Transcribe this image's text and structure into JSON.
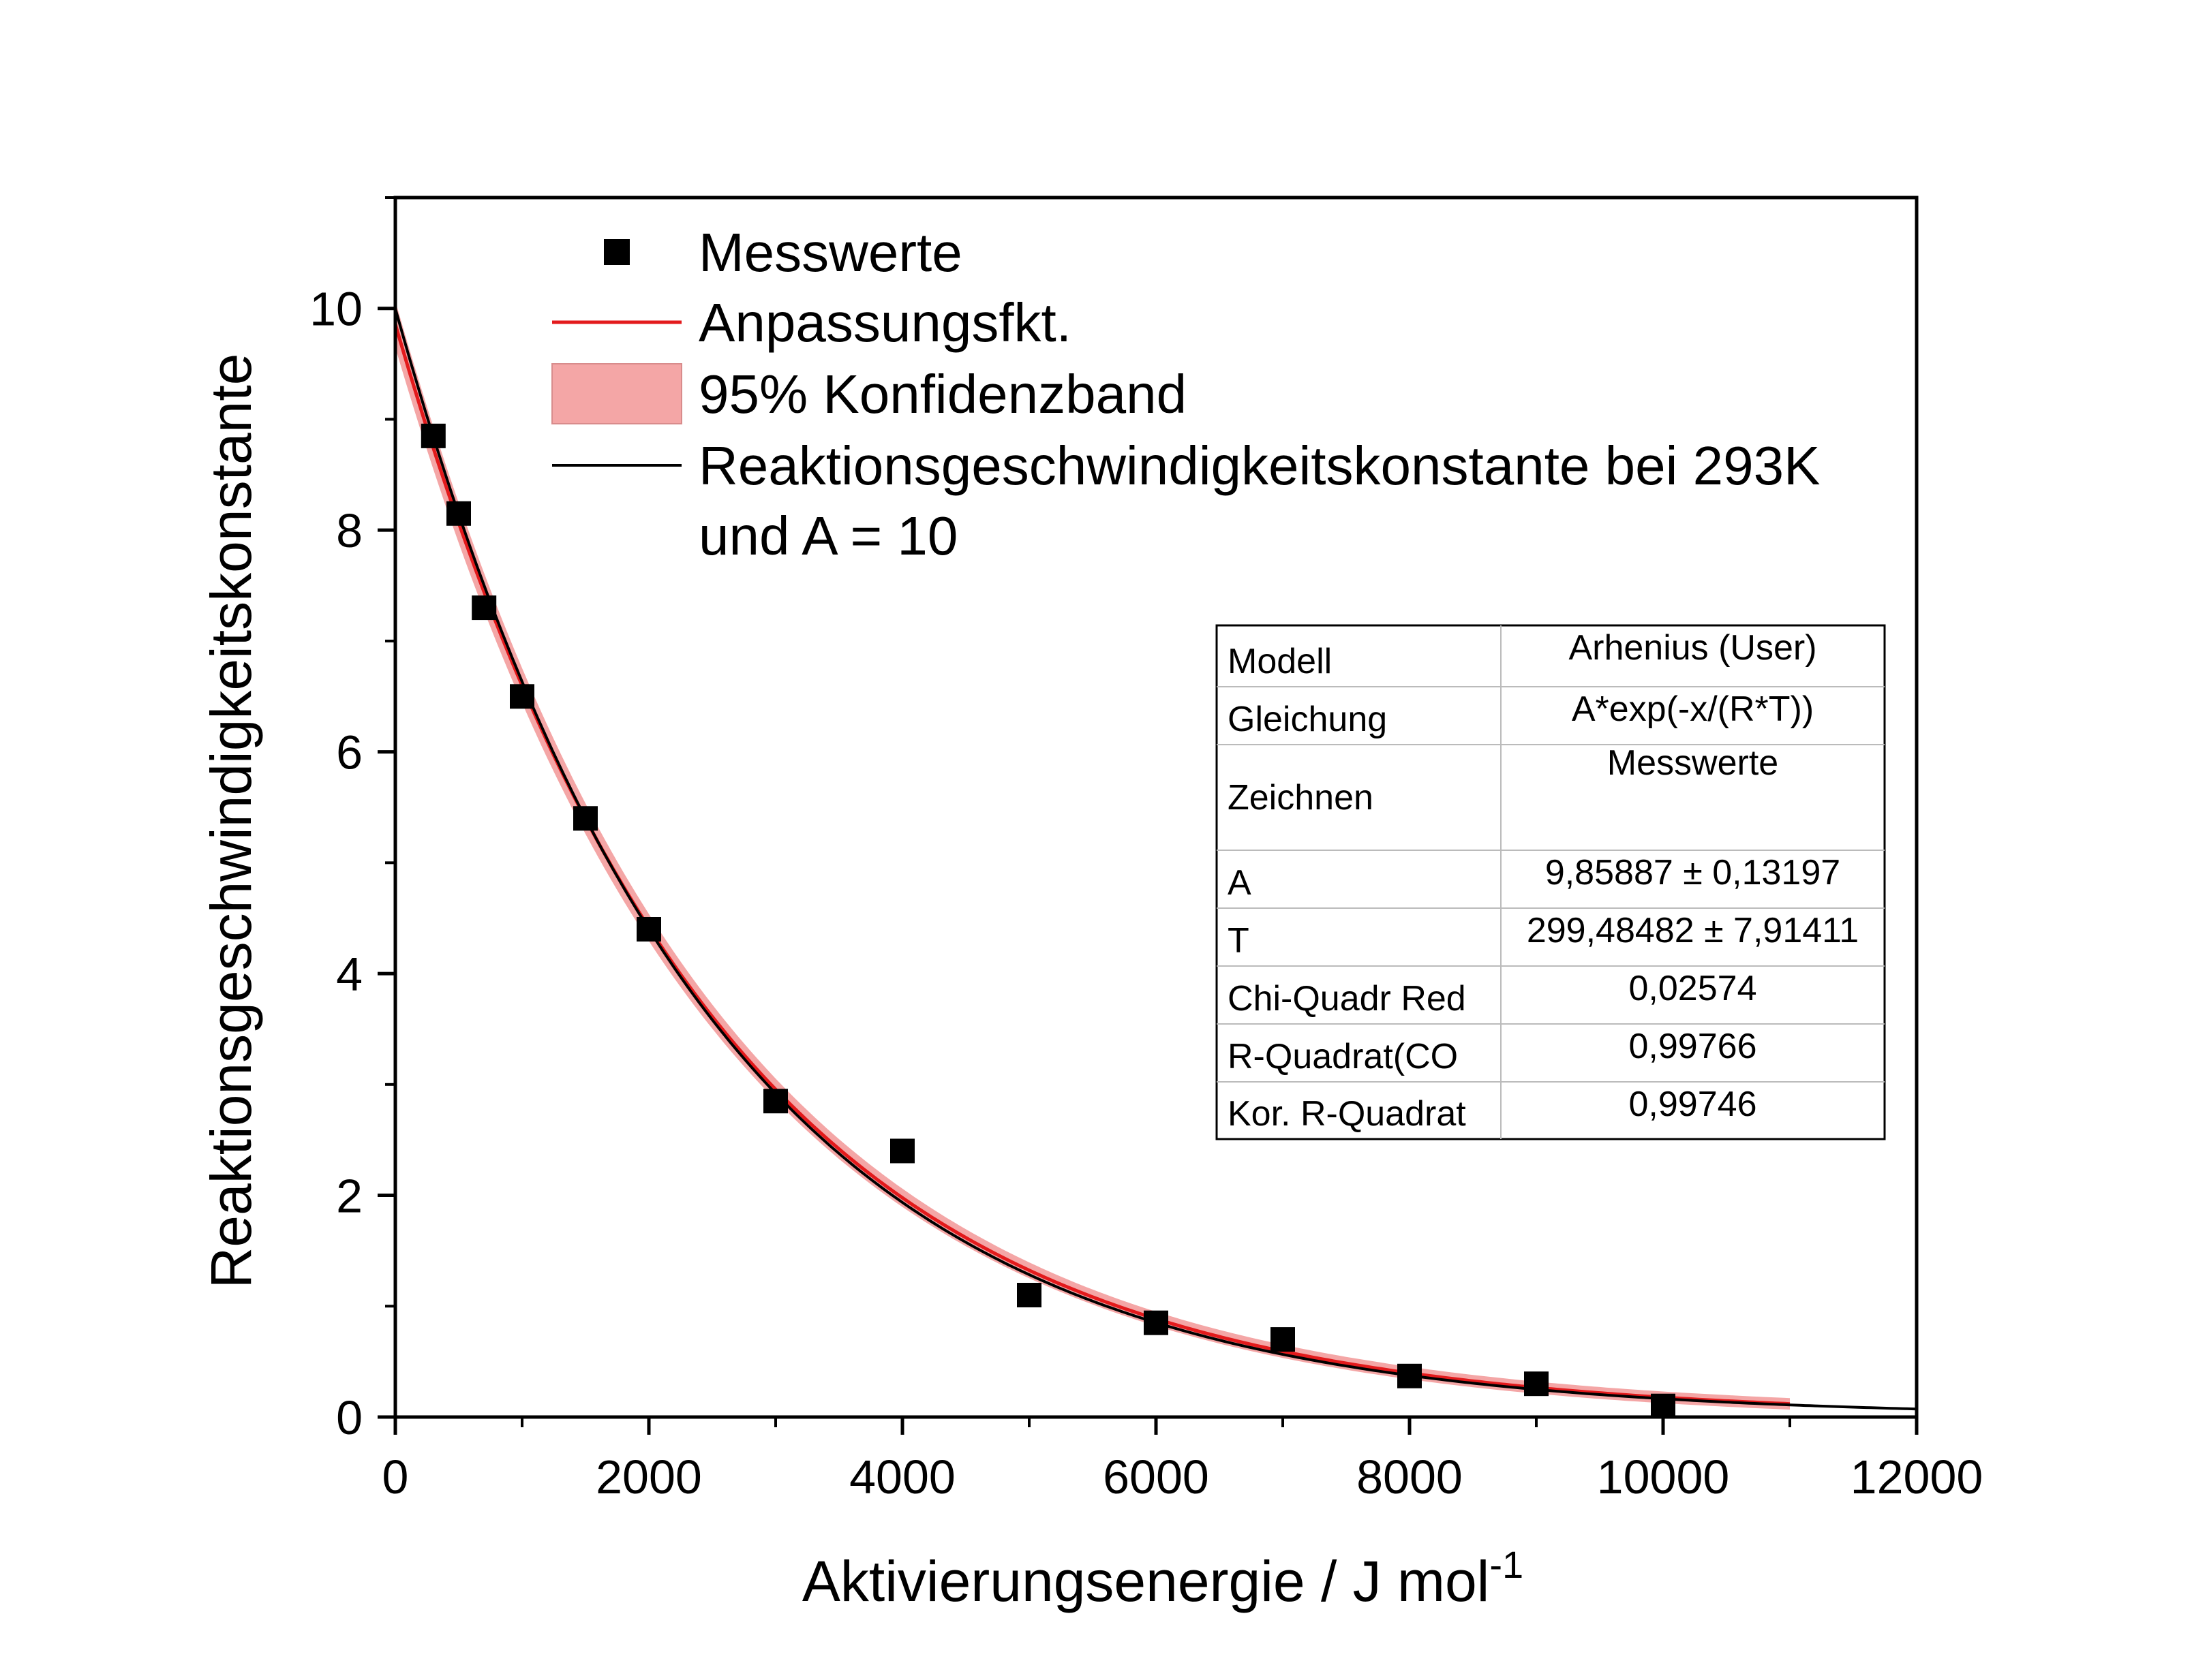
{
  "chart_data": {
    "type": "scatter",
    "xlabel": "Aktivierungsenergie / J mol",
    "xlabel_superscript": "-1",
    "ylabel": "Reaktionsgeschwindigkeitskonstante",
    "xlim": [
      0,
      12000
    ],
    "ylim": [
      0,
      11
    ],
    "x_ticks": [
      0,
      2000,
      4000,
      6000,
      8000,
      10000,
      12000
    ],
    "x_tick_labels": [
      "0",
      "2000",
      "4000",
      "6000",
      "8000",
      "10000",
      "12000"
    ],
    "y_ticks": [
      0,
      2,
      4,
      6,
      8,
      10
    ],
    "y_tick_labels": [
      "0",
      "2",
      "4",
      "6",
      "8",
      "10"
    ],
    "grid": false,
    "legend_position": "top-left",
    "series": [
      {
        "name": "Messwerte",
        "kind": "scatter",
        "marker": "square",
        "color": "#000000",
        "x": [
          300,
          500,
          700,
          1000,
          1500,
          2000,
          3000,
          4000,
          5000,
          6000,
          7000,
          8000,
          9000,
          10000
        ],
        "y": [
          8.85,
          8.15,
          7.3,
          6.5,
          5.4,
          4.4,
          2.85,
          2.4,
          1.1,
          0.85,
          0.7,
          0.37,
          0.3,
          0.1
        ]
      },
      {
        "name": "Anpassungsfkt.",
        "kind": "fit",
        "color": "#e31a1c",
        "A": 9.85887,
        "T": 299.48482,
        "x_range": [
          0,
          11000
        ]
      },
      {
        "name": "95% Konfidenzband",
        "kind": "band",
        "color": "#f4a6a6",
        "x_range": [
          0,
          11000
        ]
      },
      {
        "name": "Reaktionsgeschwindigkeitskonstante bei 293K",
        "name_line2": "und A = 10",
        "kind": "reference",
        "color": "#000000",
        "A": 10,
        "T": 293,
        "x_range": [
          0,
          12000
        ]
      }
    ],
    "stats_table": {
      "rows": [
        {
          "label": "Modell",
          "value": "Arhenius (User)"
        },
        {
          "label": "Gleichung",
          "value": "A*exp(-x/(R*T))"
        },
        {
          "label": "Zeichnen",
          "value": "Messwerte"
        },
        {
          "label": "A",
          "value": "9,85887 ± 0,13197"
        },
        {
          "label": "T",
          "value": "299,48482 ± 7,91411"
        },
        {
          "label": "Chi-Quadr Red",
          "value": "0,02574"
        },
        {
          "label": "R-Quadrat(CO",
          "value": "0,99766"
        },
        {
          "label": "Kor. R-Quadrat",
          "value": "0,99746"
        }
      ]
    }
  }
}
